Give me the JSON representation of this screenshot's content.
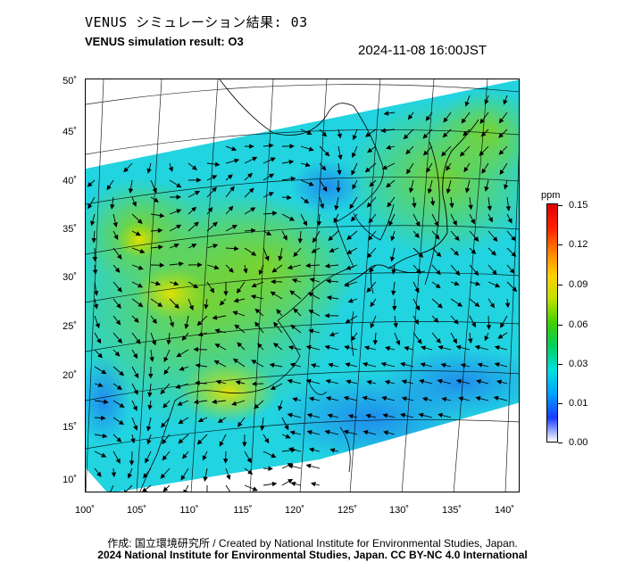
{
  "header": {
    "title_jp": "VENUS シミュレーション結果: 03",
    "title_en": "VENUS simulation result: O3",
    "timestamp": "2024-11-08 16:00JST"
  },
  "map": {
    "lat_ticks": [
      "50˚",
      "45˚",
      "40˚",
      "35˚",
      "30˚",
      "25˚",
      "20˚",
      "15˚",
      "10˚"
    ],
    "lon_ticks": [
      "100˚",
      "105˚",
      "110˚",
      "115˚",
      "120˚",
      "125˚",
      "130˚",
      "135˚",
      "140˚"
    ],
    "lat_range": [
      9,
      51
    ],
    "lon_range": [
      100,
      142
    ]
  },
  "colorbar": {
    "unit": "ppm",
    "ticks": [
      "0.15",
      "0.12",
      "0.09",
      "0.06",
      "0.03",
      "0.01",
      "0.00"
    ],
    "colors": [
      "#ffffff",
      "#1a3cff",
      "#00a0ff",
      "#00e0e0",
      "#00d060",
      "#40d000",
      "#c0e000",
      "#ffd000",
      "#ff8000",
      "#ff2000",
      "#e00000"
    ]
  },
  "footer": {
    "credit": "作成: 国立環境研究所 / Created by National Institute for Environmental Studies, Japan.",
    "license": "2024 National Institute for Environmental Studies, Japan. CC BY-NC 4.0 International"
  }
}
